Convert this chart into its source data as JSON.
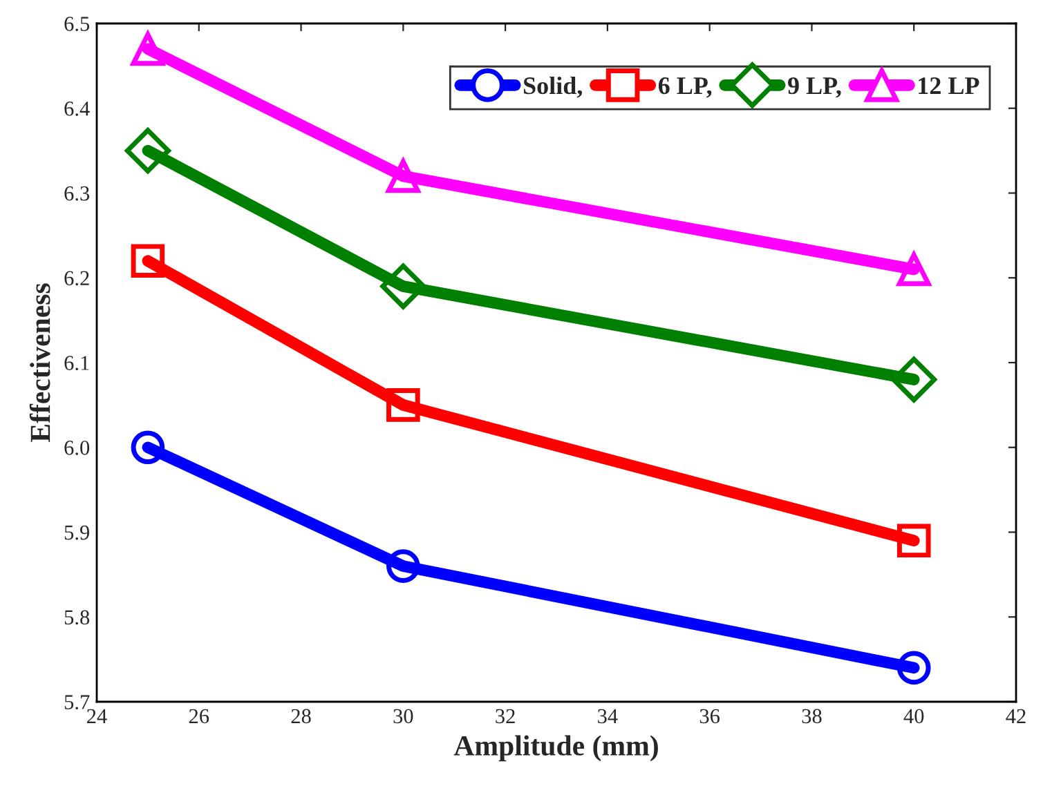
{
  "chart_data": {
    "type": "line",
    "xlabel": "Amplitude (mm)",
    "ylabel": "Effectiveness",
    "x": [
      25,
      30,
      40
    ],
    "series": [
      {
        "name": "Solid,",
        "color": "#0000ff",
        "marker": "circle",
        "values": [
          6.0,
          5.86,
          5.74
        ]
      },
      {
        "name": "6 LP,",
        "color": "#ff0000",
        "marker": "square",
        "values": [
          6.22,
          6.05,
          5.89
        ]
      },
      {
        "name": "9 LP,",
        "color": "#008000",
        "marker": "diamond",
        "values": [
          6.35,
          6.19,
          6.08
        ]
      },
      {
        "name": "12 LP",
        "color": "#ff00ff",
        "marker": "triangle",
        "values": [
          6.47,
          6.32,
          6.21
        ]
      }
    ],
    "xlim": [
      24,
      42
    ],
    "xticks": [
      24,
      26,
      28,
      30,
      32,
      34,
      36,
      38,
      40,
      42
    ],
    "ylim": [
      5.7,
      6.5
    ],
    "yticks": [
      {
        "value": 5.7,
        "label": "5.7"
      },
      {
        "value": 5.8,
        "label": "5.8"
      },
      {
        "value": 5.9,
        "label": "5.9"
      },
      {
        "value": 6.0,
        "label": "6.0"
      },
      {
        "value": 6.1,
        "label": "6.1"
      },
      {
        "value": 6.2,
        "label": "6.2"
      },
      {
        "value": 6.3,
        "label": "6.3"
      },
      {
        "value": 6.4,
        "label": "6.4"
      },
      {
        "value": 6.5,
        "label": "6.5"
      }
    ],
    "grid": false,
    "legend": "top right",
    "line_style": "solid"
  }
}
